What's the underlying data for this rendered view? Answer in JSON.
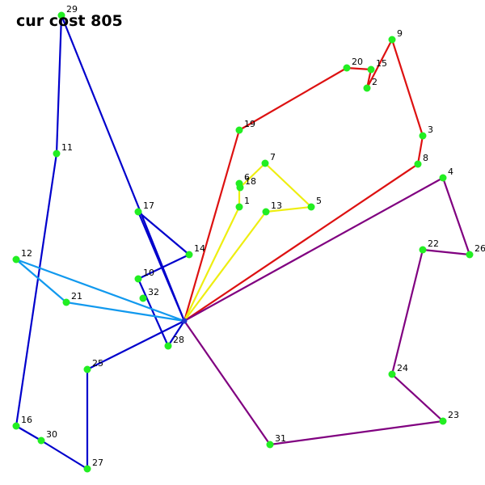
{
  "title": "cur cost 805",
  "colors": {
    "node": "#22ee22",
    "depot": "#2233cc",
    "label": "#000000"
  },
  "depot_id": "0",
  "nodes": [
    {
      "id": "29"
    },
    {
      "id": "9"
    },
    {
      "id": "20"
    },
    {
      "id": "15"
    },
    {
      "id": "2"
    },
    {
      "id": "19"
    },
    {
      "id": "3"
    },
    {
      "id": "8"
    },
    {
      "id": "11"
    },
    {
      "id": "7"
    },
    {
      "id": "6"
    },
    {
      "id": "18"
    },
    {
      "id": "4"
    },
    {
      "id": "17"
    },
    {
      "id": "1"
    },
    {
      "id": "13"
    },
    {
      "id": "5"
    },
    {
      "id": "22"
    },
    {
      "id": "26"
    },
    {
      "id": "14"
    },
    {
      "id": "12"
    },
    {
      "id": "10"
    },
    {
      "id": "32"
    },
    {
      "id": "21"
    },
    {
      "id": "28"
    },
    {
      "id": "25"
    },
    {
      "id": "24"
    },
    {
      "id": "23"
    },
    {
      "id": "16"
    },
    {
      "id": "30"
    },
    {
      "id": "31"
    },
    {
      "id": "27"
    },
    {
      "id": "0"
    }
  ],
  "routes": [
    {
      "color": "#0000cc",
      "stops": [
        "0",
        "29",
        "11",
        "16",
        "30",
        "27",
        "25",
        "0"
      ]
    },
    {
      "color": "#0000cc",
      "stops": [
        "0",
        "28",
        "10",
        "14",
        "17",
        "0"
      ]
    },
    {
      "color": "#dd1111",
      "stops": [
        "0",
        "19",
        "20",
        "15",
        "2",
        "9",
        "3",
        "8",
        "0"
      ]
    },
    {
      "color": "#eeee11",
      "stops": [
        "0",
        "1",
        "6",
        "18",
        "7",
        "5",
        "13",
        "0"
      ]
    },
    {
      "color": "#800080",
      "stops": [
        "0",
        "4",
        "26",
        "22",
        "24",
        "23",
        "31",
        "0"
      ]
    },
    {
      "color": "#1199ee",
      "stops": [
        "0",
        "12",
        "21",
        "0"
      ]
    }
  ]
}
